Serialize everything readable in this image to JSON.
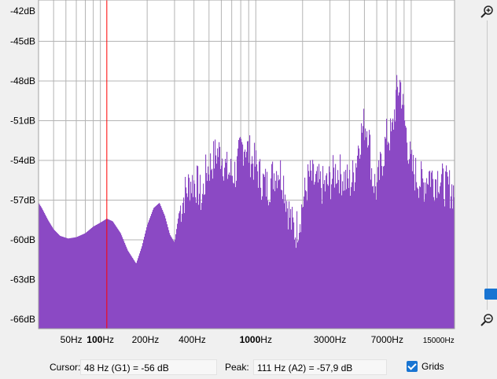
{
  "y_axis": {
    "min_db": -66,
    "max_db": -42,
    "ticks": [
      "-42dB",
      "-45dB",
      "-48dB",
      "-51dB",
      "-54dB",
      "-57dB",
      "-60dB",
      "-63dB",
      "-66dB"
    ]
  },
  "x_axis": {
    "min_hz": 40,
    "max_hz": 19000,
    "labels": [
      {
        "hz": 65,
        "text": "50Hz",
        "style": "normal"
      },
      {
        "hz": 100,
        "text": "100Hz",
        "style": "bold-prefix"
      },
      {
        "hz": 195,
        "text": "200Hz",
        "style": "normal"
      },
      {
        "hz": 390,
        "text": "400Hz",
        "style": "normal"
      },
      {
        "hz": 1000,
        "text": "1000Hz",
        "style": "bold-prefix"
      },
      {
        "hz": 3000,
        "text": "3000Hz",
        "style": "normal"
      },
      {
        "hz": 7000,
        "text": "7000Hz",
        "style": "normal"
      },
      {
        "hz": 15000,
        "text": "15000Hz",
        "style": "small"
      }
    ]
  },
  "cursor_hz": 110,
  "colors": {
    "spectrum": "#8b49c4",
    "cursor": "#ff0000",
    "grid": "#b4b4b4",
    "accent": "#1874d2",
    "plot_bg": "#ffffff"
  },
  "spectrum_profile": [
    [
      40,
      -57.2
    ],
    [
      42,
      -57.6
    ],
    [
      46,
      -58.5
    ],
    [
      50,
      -59.2
    ],
    [
      55,
      -59.7
    ],
    [
      62,
      -59.9
    ],
    [
      70,
      -59.8
    ],
    [
      80,
      -59.5
    ],
    [
      90,
      -59.0
    ],
    [
      100,
      -58.7
    ],
    [
      110,
      -58.4
    ],
    [
      120,
      -58.6
    ],
    [
      135,
      -59.5
    ],
    [
      150,
      -60.8
    ],
    [
      170,
      -61.8
    ],
    [
      185,
      -60.5
    ],
    [
      200,
      -58.9
    ],
    [
      220,
      -57.6
    ],
    [
      240,
      -57.2
    ],
    [
      260,
      -58.2
    ],
    [
      280,
      -59.6
    ],
    [
      300,
      -60.2
    ],
    [
      320,
      -58.0
    ],
    [
      350,
      -56.5
    ],
    [
      380,
      -55.6
    ],
    [
      420,
      -55.8
    ],
    [
      450,
      -57.0
    ],
    [
      480,
      -54.8
    ],
    [
      520,
      -54.2
    ],
    [
      560,
      -53.4
    ],
    [
      600,
      -53.5
    ],
    [
      650,
      -54.8
    ],
    [
      700,
      -55.0
    ],
    [
      750,
      -54.8
    ],
    [
      800,
      -53.2
    ],
    [
      850,
      -52.7
    ],
    [
      900,
      -53.4
    ],
    [
      950,
      -54.0
    ],
    [
      1000,
      -54.4
    ],
    [
      1100,
      -55.6
    ],
    [
      1200,
      -56.0
    ],
    [
      1300,
      -55.0
    ],
    [
      1400,
      -54.6
    ],
    [
      1500,
      -55.4
    ],
    [
      1600,
      -57.4
    ],
    [
      1700,
      -58.8
    ],
    [
      1800,
      -59.4
    ],
    [
      1900,
      -58.5
    ],
    [
      2000,
      -57.3
    ],
    [
      2200,
      -55.2
    ],
    [
      2500,
      -55.8
    ],
    [
      2800,
      -56.0
    ],
    [
      3000,
      -55.6
    ],
    [
      3300,
      -54.7
    ],
    [
      3600,
      -55.2
    ],
    [
      4000,
      -55.8
    ],
    [
      4300,
      -55.0
    ],
    [
      4600,
      -52.6
    ],
    [
      5000,
      -51.2
    ],
    [
      5300,
      -51.6
    ],
    [
      5600,
      -55.2
    ],
    [
      6000,
      -56.2
    ],
    [
      6500,
      -54.0
    ],
    [
      7000,
      -52.1
    ],
    [
      7500,
      -52.2
    ],
    [
      8000,
      -49.2
    ],
    [
      8500,
      -48.0
    ],
    [
      9000,
      -50.8
    ],
    [
      10000,
      -54.5
    ],
    [
      11000,
      -55.3
    ],
    [
      12000,
      -55.8
    ],
    [
      13000,
      -54.9
    ],
    [
      14000,
      -55.5
    ],
    [
      15000,
      -55.1
    ],
    [
      16000,
      -55.8
    ],
    [
      17000,
      -56.0
    ],
    [
      18000,
      -56.1
    ],
    [
      19000,
      -56.4
    ]
  ],
  "status": {
    "cursor_label": "Cursor:",
    "cursor_value": "48 Hz (G1) = -56 dB",
    "peak_label": "Peak:",
    "peak_value": "111 Hz (A2) = -57,9 dB",
    "grids_label": "Grids",
    "grids_checked": true
  },
  "icons": {
    "zoom_in": "zoom-in-magnifier",
    "zoom_out": "zoom-out-magnifier"
  }
}
